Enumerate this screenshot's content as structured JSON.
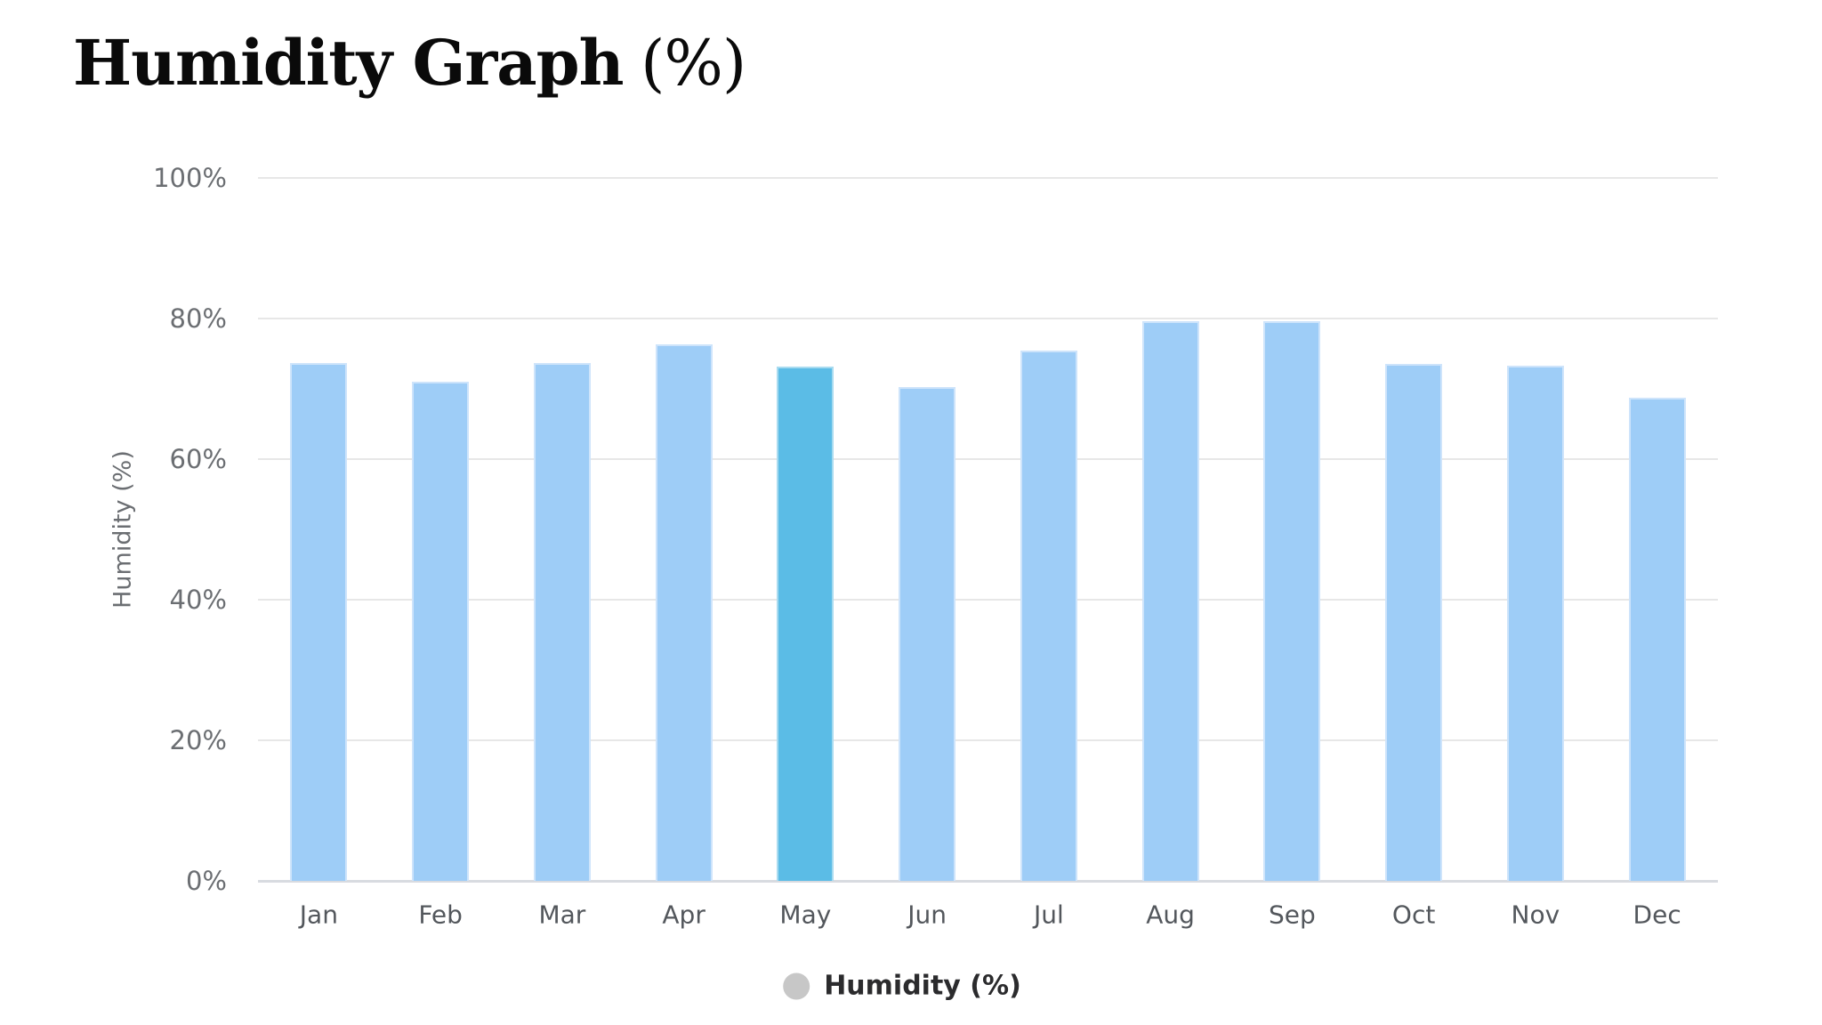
{
  "title": {
    "main": "Humidity Graph",
    "suffix": "(%)"
  },
  "y_axis": {
    "title": "Humidity (%)",
    "tick_labels": [
      "100%",
      "80%",
      "60%",
      "40%",
      "20%",
      "0%"
    ]
  },
  "x_axis": {
    "tick_labels": [
      "Jan",
      "Feb",
      "Mar",
      "Apr",
      "May",
      "Jun",
      "Jul",
      "Aug",
      "Sep",
      "Oct",
      "Nov",
      "Dec"
    ]
  },
  "legend": {
    "items": [
      {
        "label": "Humidity (%)",
        "marker": "circle",
        "marker_color": "#c7c7c7"
      }
    ]
  },
  "chart_data": {
    "type": "bar",
    "title": "Humidity Graph (%)",
    "categories": [
      "Jan",
      "Feb",
      "Mar",
      "Apr",
      "May",
      "Jun",
      "Jul",
      "Aug",
      "Sep",
      "Oct",
      "Nov",
      "Dec"
    ],
    "series": [
      {
        "name": "Humidity (%)",
        "values": [
          73.7,
          71.0,
          73.7,
          76.3,
          73.2,
          70.2,
          75.5,
          79.6,
          79.6,
          73.5,
          73.3,
          68.7
        ]
      }
    ],
    "xlabel": "",
    "ylabel": "Humidity (%)",
    "ylim": [
      0,
      100
    ],
    "y_tick_step": 20,
    "grid": true,
    "legend_position": "bottom-center",
    "highlighted_index": 4,
    "highlighted_category": "May",
    "colors": {
      "bar": "#9ECDF7",
      "bar_border": "#CEE4FB",
      "highlighted_bar": "#5BBCE6",
      "highlighted_bar_border": "#A8DBF0",
      "gridline": "#E7E7E7",
      "axis_line": "#D8DBE0",
      "tick_text": "#6B6E72",
      "legend_marker": "#C7C7C7"
    }
  }
}
